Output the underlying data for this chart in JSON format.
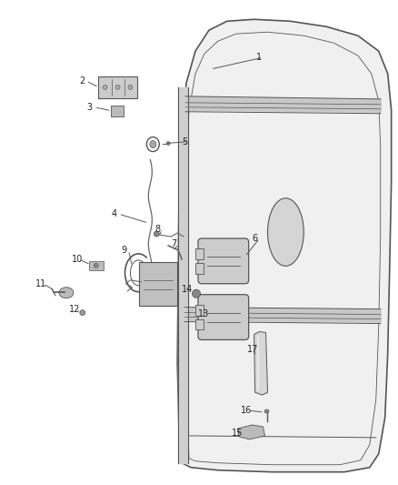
{
  "bg_color": "#ffffff",
  "fig_width": 4.38,
  "fig_height": 5.33,
  "line_color": "#444444",
  "door_fill": "#f0f0f0",
  "door_stroke": "#555555",
  "part_stroke": "#555555",
  "part_fill": "#cccccc",
  "label_fontsize": 7.0
}
